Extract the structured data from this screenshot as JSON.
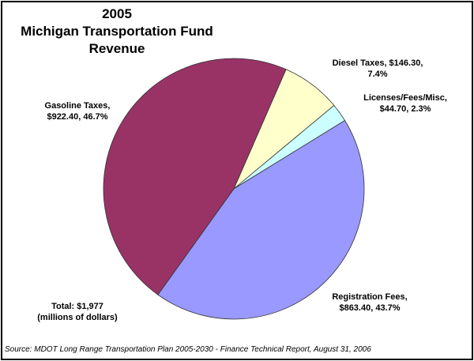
{
  "chart_data": {
    "type": "pie",
    "title_lines": [
      "2005",
      "Michigan Transportation Fund",
      "Revenue"
    ],
    "unit": "millions of dollars",
    "slices": [
      {
        "name": "Diesel Taxes",
        "value": 146.3,
        "percent": 7.4,
        "color": "#FFFFCC",
        "label_lines": [
          "Diesel Taxes, $146.30,",
          "7.4%"
        ]
      },
      {
        "name": "Licenses/Fees/Misc",
        "value": 44.7,
        "percent": 2.3,
        "color": "#CCFFFF",
        "label_lines": [
          "Licenses/Fees/Misc,",
          "$44.70, 2.3%"
        ]
      },
      {
        "name": "Registration Fees",
        "value": 863.4,
        "percent": 43.7,
        "color": "#9999FF",
        "label_lines": [
          "Registration Fees,",
          "$863.40, 43.7%"
        ]
      },
      {
        "name": "Gasoline Taxes",
        "value": 922.4,
        "percent": 46.7,
        "color": "#993366",
        "label_lines": [
          "Gasoline Taxes,",
          "$922.40, 46.7%"
        ]
      }
    ],
    "total_lines": [
      "Total: $1,977",
      "(millions of dollars)"
    ],
    "source": "Source: MDOT Long Range Transportation Plan 2005-2030 - Finance Technical Report, August 31, 2006"
  }
}
